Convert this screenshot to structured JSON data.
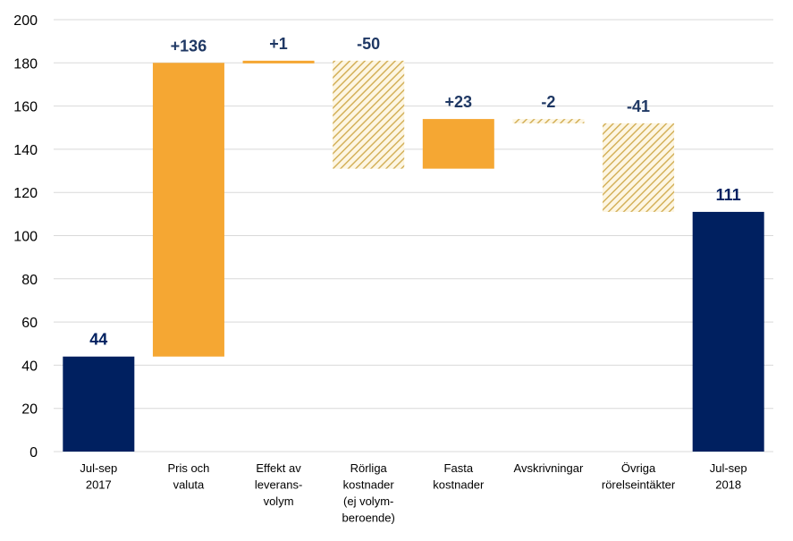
{
  "chart_data": {
    "type": "waterfall",
    "title": "",
    "xlabel": "",
    "ylabel": "",
    "ylim": [
      0,
      200
    ],
    "yticks": [
      0,
      20,
      40,
      60,
      80,
      100,
      120,
      140,
      160,
      180,
      200
    ],
    "grid": true,
    "categories": [
      [
        "Jul-sep",
        "2017"
      ],
      [
        "Pris och",
        "valuta"
      ],
      [
        "Effekt av",
        "leverans-",
        "volym"
      ],
      [
        "Rörliga",
        "kostnader",
        "(ej volym-",
        "beroende)"
      ],
      [
        "Fasta",
        "kostnader"
      ],
      [
        "Avskrivningar"
      ],
      [
        "Övriga",
        "rörelseintäkter"
      ],
      [
        "Jul-sep",
        "2018"
      ]
    ],
    "bars": [
      {
        "kind": "total",
        "start": 0,
        "end": 44,
        "label": "44"
      },
      {
        "kind": "increase",
        "start": 44,
        "end": 180,
        "label": "+136"
      },
      {
        "kind": "increase",
        "start": 180,
        "end": 181,
        "label": "+1"
      },
      {
        "kind": "decrease",
        "start": 181,
        "end": 131,
        "label": "-50"
      },
      {
        "kind": "increase",
        "start": 131,
        "end": 154,
        "label": "+23"
      },
      {
        "kind": "decrease",
        "start": 154,
        "end": 152,
        "label": "-2"
      },
      {
        "kind": "decrease",
        "start": 152,
        "end": 111,
        "label": "-41"
      },
      {
        "kind": "total",
        "start": 0,
        "end": 111,
        "label": "111"
      }
    ],
    "colors": {
      "total": "#002060",
      "increase": "#f5a733",
      "decrease": "#d4b15a",
      "label_total": "#002060",
      "label_change": "#1f3864"
    }
  }
}
